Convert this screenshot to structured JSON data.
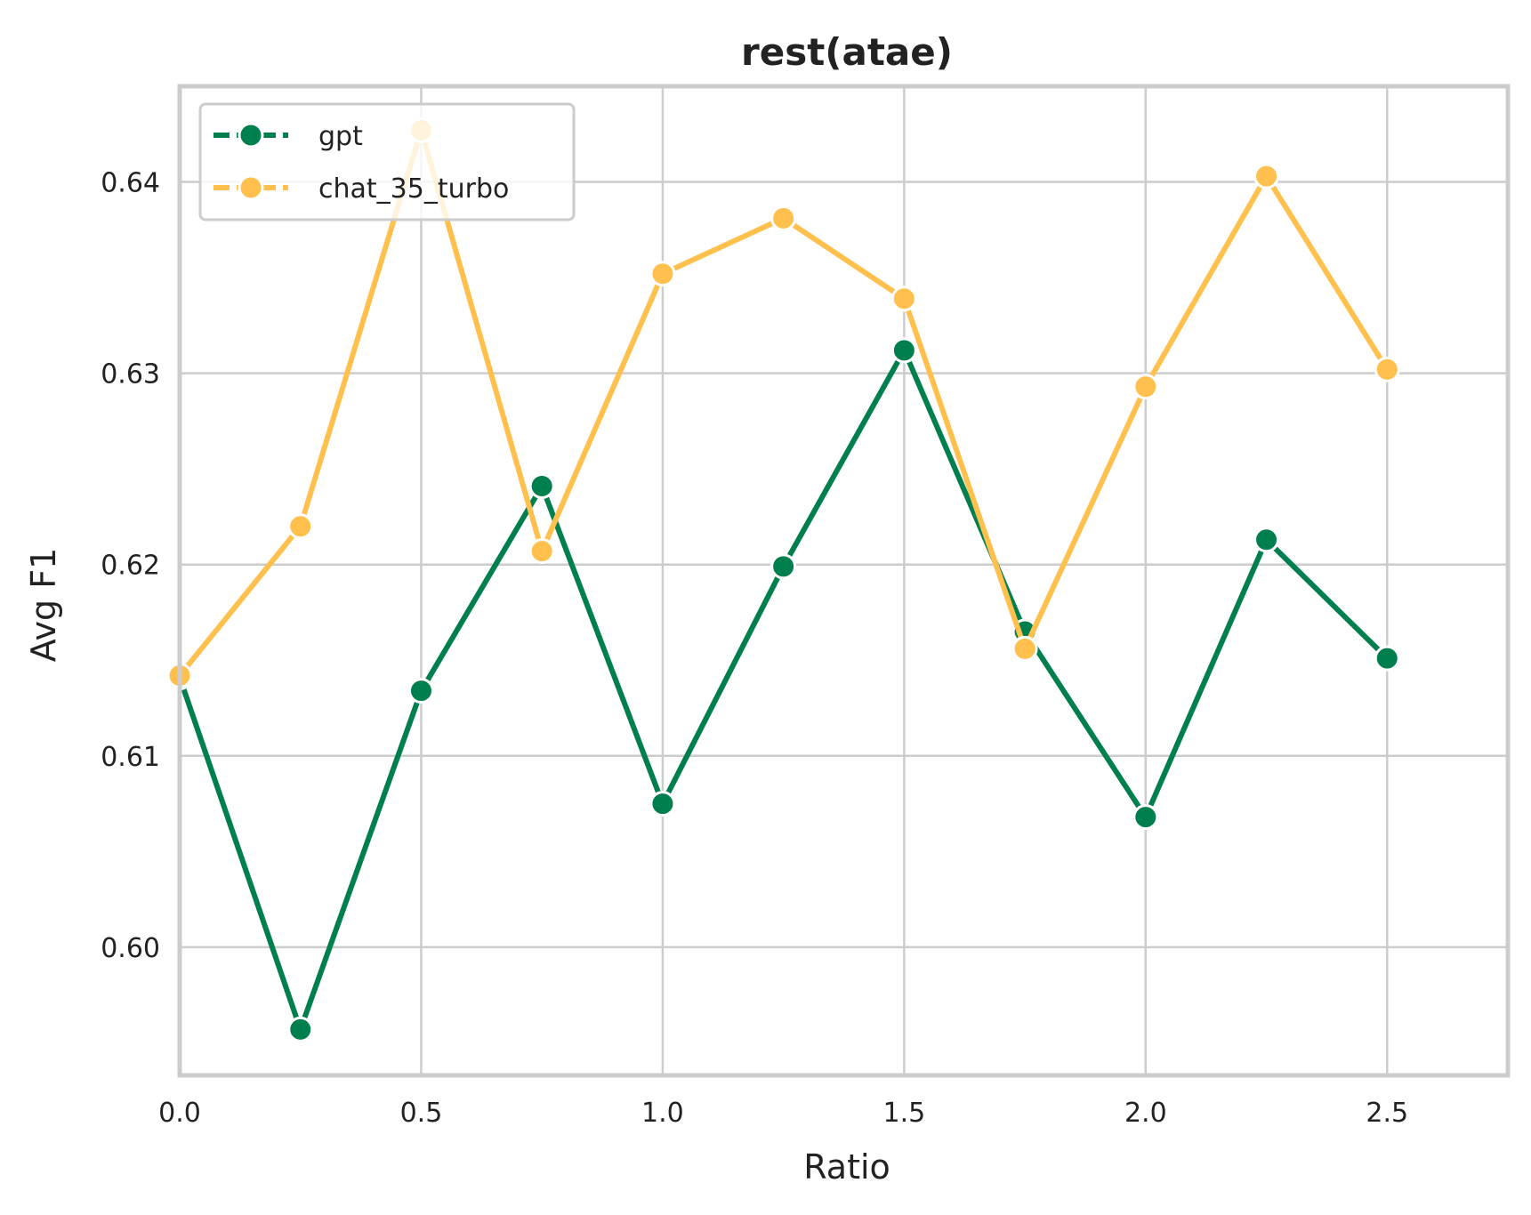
{
  "chart_data": {
    "type": "line",
    "title": "rest(atae)",
    "xlabel": "Ratio",
    "ylabel": "Avg F1",
    "xlim": [
      0.0,
      2.75
    ],
    "ylim": [
      0.5933,
      0.645
    ],
    "xticks": [
      0.0,
      0.5,
      1.0,
      1.5,
      2.0,
      2.5
    ],
    "xtick_labels": [
      "0.0",
      "0.5",
      "1.0",
      "1.5",
      "2.0",
      "2.5"
    ],
    "yticks": [
      0.6,
      0.61,
      0.62,
      0.63,
      0.64
    ],
    "ytick_labels": [
      "0.60",
      "0.61",
      "0.62",
      "0.63",
      "0.64"
    ],
    "grid": true,
    "legend_position": "top-left",
    "x": [
      0.0,
      0.25,
      0.5,
      0.75,
      1.0,
      1.25,
      1.5,
      1.75,
      2.0,
      2.25,
      2.5
    ],
    "series": [
      {
        "name": "gpt",
        "color": "#007f4e",
        "values": [
          0.6141,
          0.5957,
          0.6134,
          0.6241,
          0.6075,
          0.6199,
          0.6312,
          0.6165,
          0.6068,
          0.6213,
          0.6151
        ]
      },
      {
        "name": "chat_35_turbo",
        "color": "#ffc04d",
        "values": [
          0.6142,
          0.622,
          0.6427,
          0.6207,
          0.6352,
          0.6381,
          0.6339,
          0.6156,
          0.6293,
          0.6403,
          0.6302
        ]
      }
    ]
  }
}
